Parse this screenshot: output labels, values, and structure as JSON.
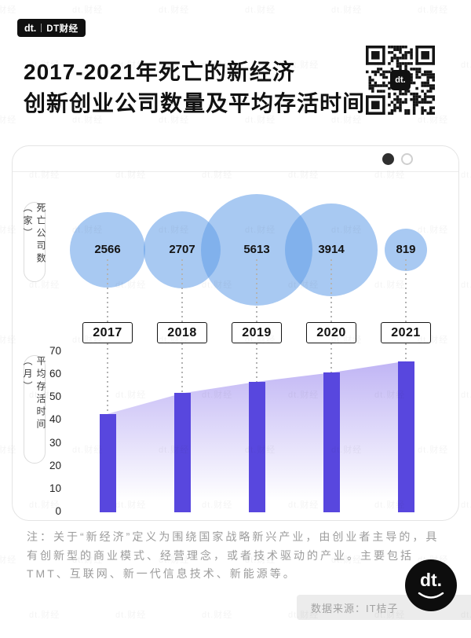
{
  "header": {
    "logo_text": "dt.",
    "brand": "DT财经",
    "title_line1": "2017-2021年死亡的新经济",
    "title_line2": "创新创业公司数量及平均存活时间",
    "qr_center_text": "dt."
  },
  "chart_data": {
    "type": "bubble+bar",
    "categories": [
      "2017",
      "2018",
      "2019",
      "2020",
      "2021"
    ],
    "series": [
      {
        "name": "死亡公司数（家）",
        "type": "bubble",
        "values": [
          2566,
          2707,
          5613,
          3914,
          819
        ]
      },
      {
        "name": "平均存活时间（月）",
        "type": "bar",
        "values": [
          43,
          52,
          57,
          61,
          66
        ]
      }
    ],
    "bubble_axis_label": "死亡公司数（家）",
    "bar_axis_label": "平均存活时间（月）",
    "bar_ylim": [
      0,
      70
    ],
    "bar_yticks": [
      0,
      10,
      20,
      30,
      40,
      50,
      60,
      70
    ],
    "grid": false,
    "legend": false,
    "bar_color": "#5847de",
    "bubble_color": "#a9cbf4",
    "area_color": "#7c64e9"
  },
  "note": "注：关于“新经济”定义为围绕国家战略新兴产业，由创业者主导的，具有创新型的商业模式、经营理念，或者技术驱动的产业。主要包括TMT、互联网、新一代信息技术、新能源等。",
  "footer": {
    "source": "数据来源：IT桔子",
    "logo_text": "dt."
  },
  "watermark": "dt.财经"
}
